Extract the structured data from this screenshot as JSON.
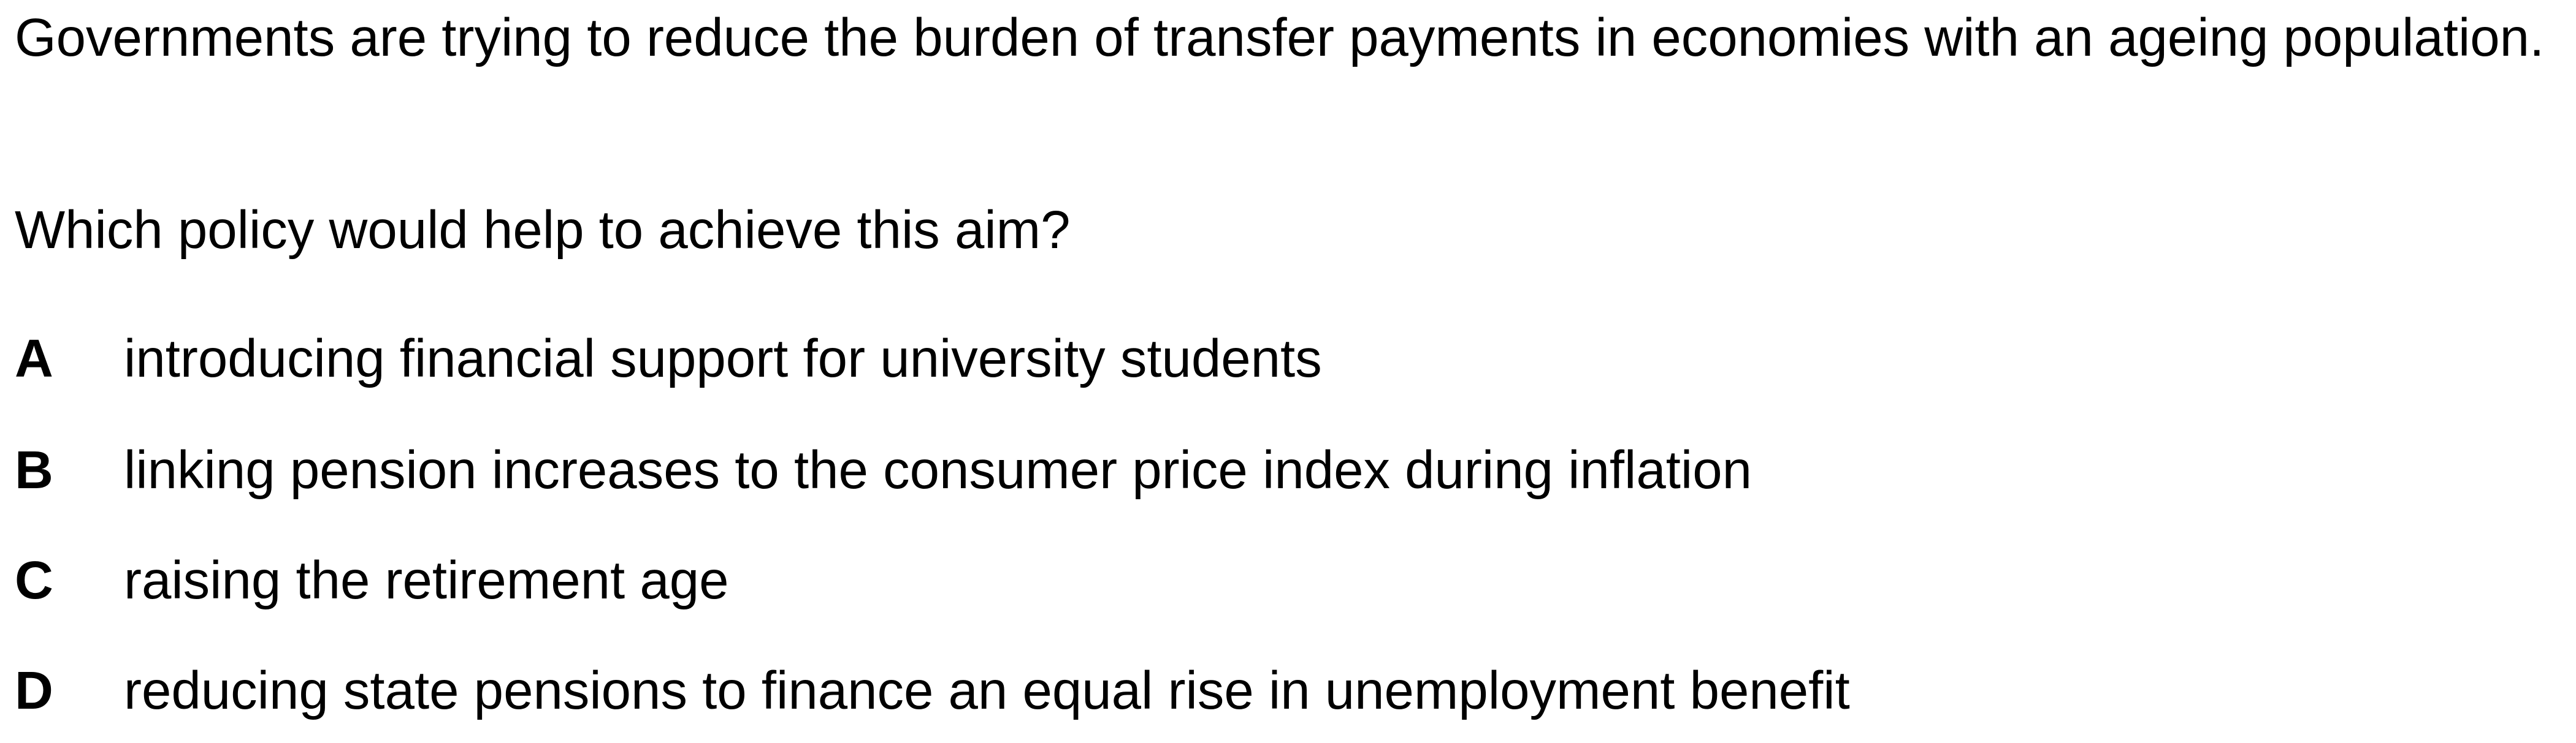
{
  "question": {
    "stem": "Governments are trying to reduce the burden of transfer payments in economies with an ageing population.",
    "prompt": "Which policy would help to achieve this aim?",
    "options": [
      {
        "letter": "A",
        "text": "introducing financial support for university students"
      },
      {
        "letter": "B",
        "text": "linking pension increases to the consumer price index during inflation"
      },
      {
        "letter": "C",
        "text": "raising the retirement age"
      },
      {
        "letter": "D",
        "text": "reducing state pensions to finance an equal rise in unemployment benefit"
      }
    ]
  }
}
